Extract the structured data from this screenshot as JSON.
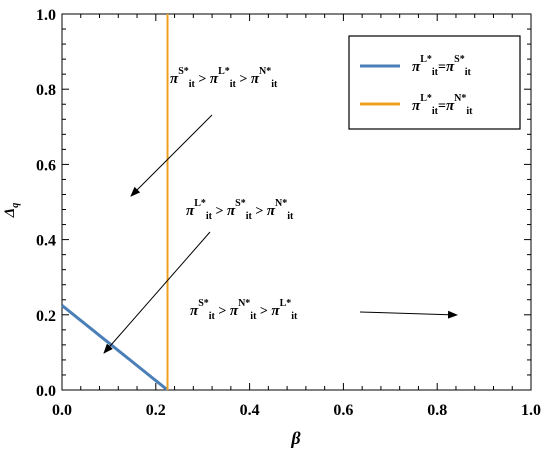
{
  "chart_data": {
    "type": "line",
    "title": "",
    "xlabel": "β",
    "ylabel": "Δq",
    "xlim": [
      0,
      1
    ],
    "ylim": [
      0,
      1
    ],
    "xticks": [
      "0.0",
      "0.2",
      "0.4",
      "0.6",
      "0.8",
      "1.0"
    ],
    "yticks": [
      "0.0",
      "0.2",
      "0.4",
      "0.6",
      "0.8",
      "1.0"
    ],
    "grid": false,
    "legend_position": "top-right",
    "series": [
      {
        "name": "πL*it=πS*it",
        "color": "#4a7fb8",
        "x": [
          0,
          0.225
        ],
        "y": [
          0.225,
          0
        ]
      },
      {
        "name": "πL*it=πN*it",
        "color": "#f0a020",
        "x": [
          0.225,
          0.225
        ],
        "y": [
          0,
          1
        ]
      }
    ],
    "annotations": [
      {
        "text": "πS*it > πL*it > πN*it"
      },
      {
        "text": "πL*it > πS*it > πN*it"
      },
      {
        "text": "πS*it > πN*it > πL*it"
      }
    ]
  }
}
